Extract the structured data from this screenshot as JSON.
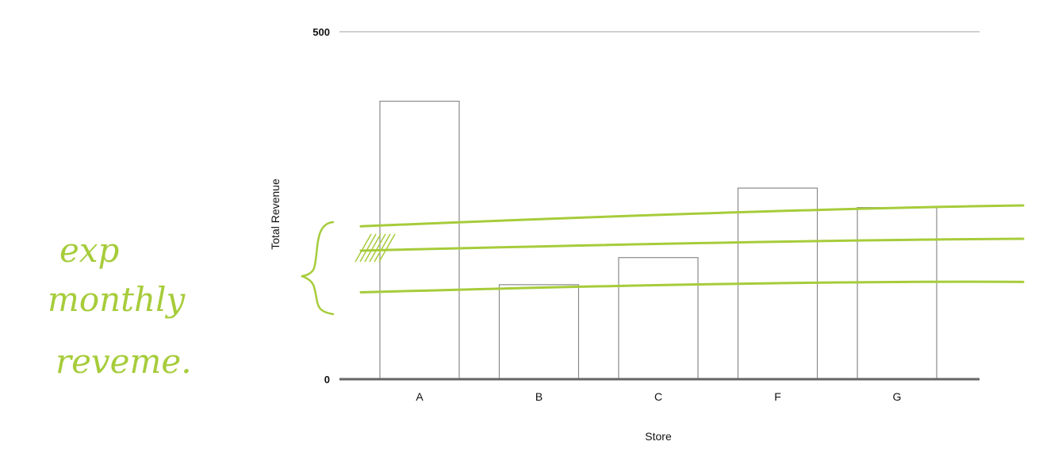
{
  "chart_data": {
    "type": "bar",
    "categories": [
      "A",
      "B",
      "C",
      "F",
      "G"
    ],
    "values": [
      400,
      136,
      175,
      275,
      247
    ],
    "xlabel": "Store",
    "ylabel": "Total Revenue",
    "ylim": [
      0,
      500
    ],
    "yticks": [
      0,
      500
    ],
    "grid": false,
    "legend": "none",
    "bar_fill": "#ffffff",
    "bar_stroke": "#8a8a8a",
    "annotation": {
      "text_lines": [
        "exp",
        "monthly",
        "reveme."
      ],
      "color": "#a6cc3a",
      "lines": [
        {
          "values": [
            220,
            245,
            250
          ]
        },
        {
          "values": [
            185,
            200,
            202
          ]
        },
        {
          "values": [
            125,
            142,
            140
          ]
        }
      ]
    }
  }
}
